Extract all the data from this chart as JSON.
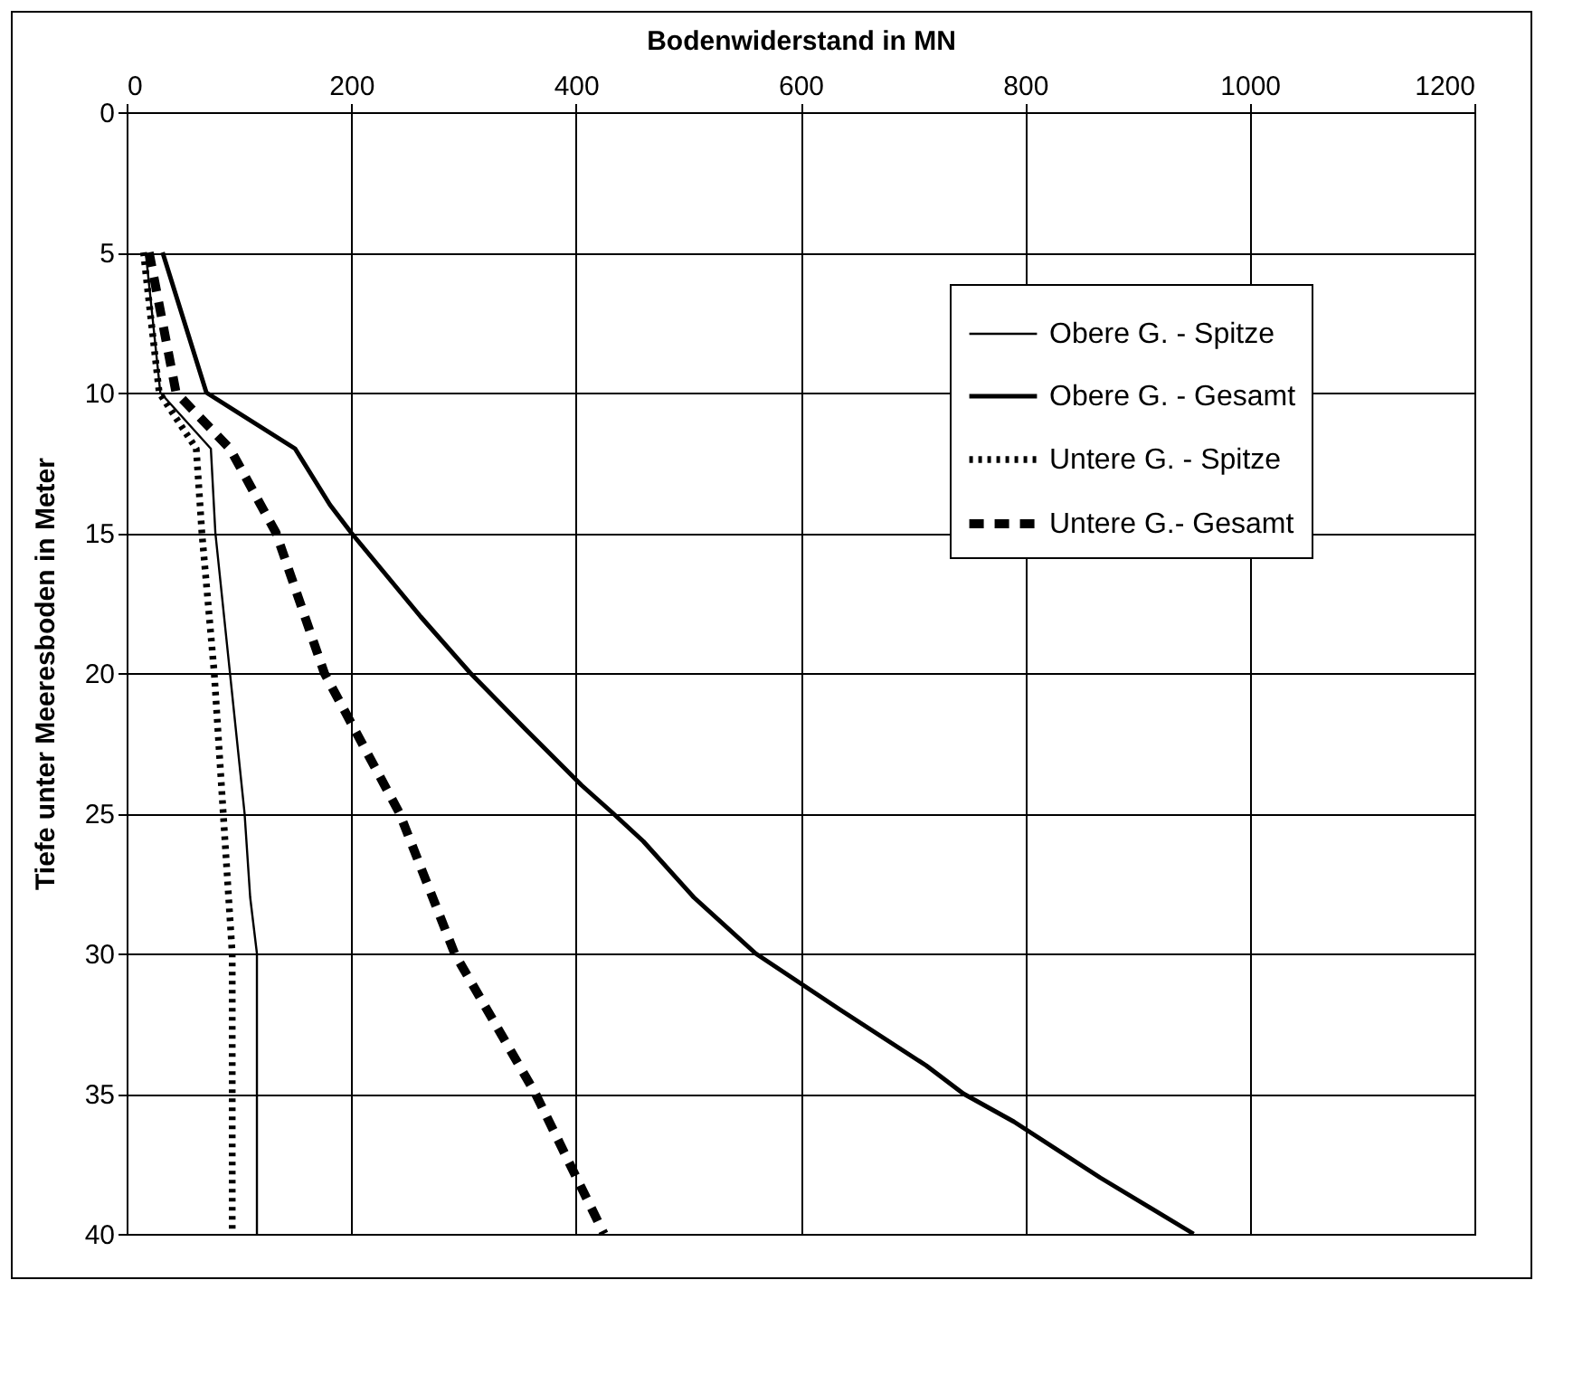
{
  "chart_data": {
    "type": "line",
    "xlabel": "Bodenwiderstand in MN",
    "ylabel": "Tiefe unter Meeresboden in Meter",
    "xlim": [
      0,
      1200
    ],
    "xticks": [
      0,
      200,
      400,
      600,
      800,
      1000,
      1200
    ],
    "ylim": [
      40,
      0
    ],
    "yticks": [
      0,
      5,
      10,
      15,
      20,
      25,
      30,
      35,
      40
    ],
    "grid": true,
    "legend": "top right",
    "marker": "none",
    "series": [
      {
        "name": "Obere G. - Spitze",
        "color": "#000000",
        "line_style": "solid",
        "x": [
          17,
          30,
          75,
          79,
          92,
          105,
          110,
          116,
          116,
          116
        ],
        "values": [
          5,
          10,
          12,
          15,
          20,
          25,
          28,
          30,
          35,
          40
        ]
      },
      {
        "name": "Obere G. - Gesamt",
        "color": "#000000",
        "line_style": "solid",
        "x": [
          32,
          71,
          150,
          181,
          200,
          262,
          306,
          355,
          405,
          433,
          460,
          505,
          560,
          635,
          712,
          745,
          790,
          867,
          950
        ],
        "values": [
          5,
          10,
          12,
          14,
          15,
          18,
          20,
          22,
          24,
          25,
          26,
          28,
          30,
          32,
          34,
          35,
          36,
          38,
          40
        ]
      },
      {
        "name": "Untere G. - Spitze",
        "color": "#000000",
        "line_style": "dotted",
        "x": [
          15,
          29,
          62,
          67,
          78,
          86,
          94,
          94,
          94
        ],
        "values": [
          5,
          10,
          12,
          15,
          20,
          25,
          30,
          35,
          40
        ]
      },
      {
        "name": "Untere G.- Gesamt",
        "color": "#000000",
        "line_style": "dashed",
        "x": [
          20,
          44,
          92,
          133,
          176,
          243,
          292,
          364,
          425
        ],
        "values": [
          5,
          10,
          12,
          15,
          20,
          25,
          30,
          35,
          40
        ]
      }
    ]
  }
}
